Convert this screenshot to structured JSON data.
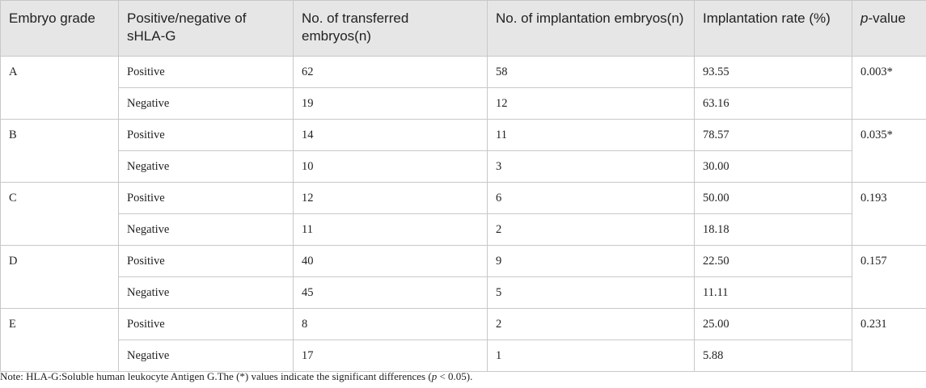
{
  "table": {
    "header": [
      "Embryo grade",
      "Positive/negative of sHLA-G",
      "No. of transferred embryos(n)",
      "No. of implantation embryos(n)",
      "Implantation rate (%)",
      "p-value"
    ],
    "groups": [
      {
        "grade": "A",
        "p_value": "0.003*",
        "rows": [
          [
            "Positive",
            "62",
            "58",
            "93.55"
          ],
          [
            "Negative",
            "19",
            "12",
            "63.16"
          ]
        ]
      },
      {
        "grade": "B",
        "p_value": "0.035*",
        "rows": [
          [
            "Positive",
            "14",
            "11",
            "78.57"
          ],
          [
            "Negative",
            "10",
            "3",
            "30.00"
          ]
        ]
      },
      {
        "grade": "C",
        "p_value": "0.193",
        "rows": [
          [
            "Positive",
            "12",
            "6",
            "50.00"
          ],
          [
            "Negative",
            "11",
            "2",
            "18.18"
          ]
        ]
      },
      {
        "grade": "D",
        "p_value": "0.157",
        "rows": [
          [
            "Positive",
            "40",
            "9",
            "22.50"
          ],
          [
            "Negative",
            "45",
            "5",
            "11.11"
          ]
        ]
      },
      {
        "grade": "E",
        "p_value": "0.231",
        "rows": [
          [
            "Positive",
            "8",
            "2",
            "25.00"
          ],
          [
            "Negative",
            "17",
            "1",
            "5.88"
          ]
        ]
      }
    ]
  },
  "note": {
    "parts": [
      "Note: HLA-G:Soluble human leukocyte Antigen G.The (*) values indicate the significant differences (",
      "p",
      " < 0.05)."
    ]
  }
}
